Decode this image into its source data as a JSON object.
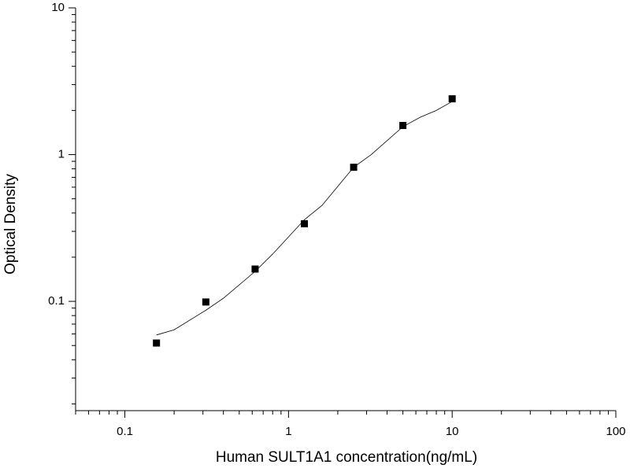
{
  "chart_data": {
    "type": "scatter",
    "x_label": "Human SULT1A1 concentration(ng/mL)",
    "y_label": "Optical Density",
    "x": [
      0.156,
      0.3125,
      0.625,
      1.25,
      2.5,
      5,
      10
    ],
    "values": [
      0.052,
      0.099,
      0.166,
      0.338,
      0.82,
      1.58,
      2.4
    ],
    "color": "#000000",
    "curve": {
      "x": [
        0.156,
        0.2,
        0.3125,
        0.4,
        0.625,
        0.8,
        1.25,
        1.6,
        2.5,
        3.2,
        5,
        6.4,
        8,
        10
      ],
      "values": [
        0.059,
        0.064,
        0.087,
        0.105,
        0.16,
        0.21,
        0.36,
        0.45,
        0.82,
        1.0,
        1.55,
        1.8,
        2.0,
        2.3
      ],
      "color": "#000000"
    },
    "xscale": "log",
    "yscale": "log",
    "xlim": [
      0.05,
      100
    ],
    "ylim": [
      0.018,
      10
    ],
    "xticks": [
      0.1,
      1,
      10,
      100
    ],
    "yticks": [
      0.1,
      1,
      10
    ],
    "xminorticks": [
      0.05,
      0.06,
      0.07,
      0.08,
      0.09,
      0.2,
      0.3,
      0.4,
      0.5,
      0.6,
      0.7,
      0.8,
      0.9,
      2,
      3,
      4,
      5,
      6,
      7,
      8,
      9,
      20,
      30,
      40,
      50,
      60,
      70,
      80,
      90
    ],
    "yminorticks": [
      0.02,
      0.03,
      0.04,
      0.05,
      0.06,
      0.07,
      0.08,
      0.09,
      0.2,
      0.3,
      0.4,
      0.5,
      0.6,
      0.7,
      0.8,
      0.9,
      2,
      3,
      4,
      5,
      6,
      7,
      8,
      9
    ],
    "grid": false
  }
}
